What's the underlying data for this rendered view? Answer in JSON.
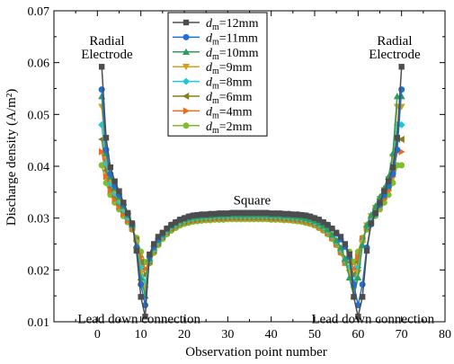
{
  "chart_data": {
    "type": "line",
    "xlabel": "Observation point number",
    "ylabel": "Discharge density (A/m²)",
    "xlim": [
      -10,
      80
    ],
    "ylim": [
      0.01,
      0.07
    ],
    "xticks": [
      0,
      10,
      20,
      30,
      40,
      50,
      60,
      70,
      80
    ],
    "yticks": [
      0.01,
      0.02,
      0.03,
      0.04,
      0.05,
      0.06,
      0.07
    ],
    "grid": false,
    "legend_position": "top-center",
    "x": [
      1,
      2,
      3,
      4,
      5,
      6,
      7,
      8,
      9,
      10,
      11,
      12,
      13,
      14,
      15,
      16,
      17,
      18,
      19,
      20,
      21,
      22,
      23,
      24,
      25,
      26,
      27,
      28,
      29,
      30,
      31,
      32,
      33,
      34,
      35,
      36,
      37,
      38,
      39,
      40,
      41,
      42,
      43,
      44,
      45,
      46,
      47,
      48,
      49,
      50,
      51,
      52,
      53,
      54,
      55,
      56,
      57,
      58,
      59,
      60,
      61,
      62,
      63,
      64,
      65,
      66,
      67,
      68,
      69,
      70
    ],
    "series": [
      {
        "legend_label": "12mm",
        "marker": "square",
        "color": "#4d4d4d",
        "values": [
          0.0592,
          0.0455,
          0.0398,
          0.0371,
          0.0352,
          0.033,
          0.031,
          0.029,
          0.0237,
          0.0148,
          0.011,
          0.023,
          0.025,
          0.0264,
          0.0272,
          0.028,
          0.0287,
          0.0292,
          0.0297,
          0.03,
          0.0303,
          0.0305,
          0.0306,
          0.0307,
          0.0307,
          0.0308,
          0.0308,
          0.0309,
          0.0309,
          0.0309,
          0.031,
          0.031,
          0.031,
          0.031,
          0.031,
          0.031,
          0.031,
          0.031,
          0.031,
          0.0309,
          0.0309,
          0.0309,
          0.0308,
          0.0308,
          0.0307,
          0.0307,
          0.0306,
          0.0305,
          0.0303,
          0.03,
          0.0297,
          0.0292,
          0.0287,
          0.028,
          0.0272,
          0.0264,
          0.025,
          0.023,
          0.0148,
          0.011,
          0.0148,
          0.0237,
          0.029,
          0.031,
          0.033,
          0.0352,
          0.0371,
          0.0398,
          0.0455,
          0.0592
        ]
      },
      {
        "legend_label": "11mm",
        "marker": "circle",
        "color": "#1f6fd6",
        "values": [
          0.0548,
          0.0432,
          0.0385,
          0.0362,
          0.0345,
          0.0326,
          0.0308,
          0.0288,
          0.0243,
          0.0172,
          0.0132,
          0.0225,
          0.0245,
          0.0259,
          0.027,
          0.028,
          0.0287,
          0.0292,
          0.0297,
          0.03,
          0.0303,
          0.0305,
          0.0306,
          0.0307,
          0.0307,
          0.0308,
          0.0308,
          0.0309,
          0.0309,
          0.0309,
          0.031,
          0.031,
          0.031,
          0.031,
          0.031,
          0.031,
          0.031,
          0.031,
          0.031,
          0.0309,
          0.0309,
          0.0309,
          0.0308,
          0.0308,
          0.0307,
          0.0307,
          0.0306,
          0.0305,
          0.0303,
          0.03,
          0.0297,
          0.0292,
          0.0287,
          0.028,
          0.027,
          0.0259,
          0.0245,
          0.0225,
          0.0172,
          0.0132,
          0.0172,
          0.0243,
          0.0288,
          0.0308,
          0.0326,
          0.0345,
          0.0362,
          0.0385,
          0.0432,
          0.0548
        ]
      },
      {
        "legend_label": "10mm",
        "marker": "triangle-up",
        "color": "#2e9e5e",
        "values": [
          0.0535,
          0.0425,
          0.038,
          0.0358,
          0.0341,
          0.0323,
          0.0306,
          0.0287,
          0.0248,
          0.0185,
          0.015,
          0.0222,
          0.0243,
          0.0257,
          0.0268,
          0.0278,
          0.0285,
          0.029,
          0.0295,
          0.0298,
          0.03,
          0.0302,
          0.0303,
          0.0304,
          0.0305,
          0.0305,
          0.0306,
          0.0306,
          0.0306,
          0.0307,
          0.0307,
          0.0307,
          0.0307,
          0.0307,
          0.0307,
          0.0307,
          0.0307,
          0.0307,
          0.0307,
          0.0306,
          0.0306,
          0.0306,
          0.0305,
          0.0305,
          0.0304,
          0.0303,
          0.0302,
          0.03,
          0.0298,
          0.0295,
          0.029,
          0.0285,
          0.0278,
          0.0268,
          0.0257,
          0.0243,
          0.0222,
          0.0185,
          0.015,
          0.0185,
          0.0248,
          0.0287,
          0.0306,
          0.0323,
          0.0341,
          0.0358,
          0.038,
          0.0425,
          0.0535,
          0.0535
        ]
      },
      {
        "legend_label": "9mm",
        "marker": "triangle-down",
        "color": "#d4a017",
        "values": [
          0.0515,
          0.0418,
          0.0375,
          0.0354,
          0.0337,
          0.032,
          0.0304,
          0.0286,
          0.0252,
          0.0195,
          0.0162,
          0.022,
          0.0241,
          0.0256,
          0.0267,
          0.0277,
          0.0284,
          0.0289,
          0.0294,
          0.0297,
          0.0299,
          0.0301,
          0.0302,
          0.0303,
          0.0304,
          0.0304,
          0.0305,
          0.0305,
          0.0305,
          0.0306,
          0.0306,
          0.0306,
          0.0306,
          0.0306,
          0.0306,
          0.0306,
          0.0306,
          0.0306,
          0.0306,
          0.0305,
          0.0305,
          0.0305,
          0.0304,
          0.0304,
          0.0303,
          0.0302,
          0.0301,
          0.0299,
          0.0297,
          0.0294,
          0.0289,
          0.0284,
          0.0277,
          0.0267,
          0.0256,
          0.0241,
          0.022,
          0.0195,
          0.0162,
          0.0195,
          0.0252,
          0.0286,
          0.0304,
          0.032,
          0.0337,
          0.0354,
          0.0375,
          0.0418,
          0.0515,
          0.0515
        ]
      },
      {
        "legend_label": "8mm",
        "marker": "diamond",
        "color": "#1fc6d6",
        "values": [
          0.048,
          0.0405,
          0.0367,
          0.0348,
          0.0332,
          0.0316,
          0.0301,
          0.0284,
          0.0255,
          0.0205,
          0.0175,
          0.0218,
          0.0239,
          0.0254,
          0.0265,
          0.0275,
          0.0282,
          0.0287,
          0.0292,
          0.0295,
          0.0297,
          0.0299,
          0.03,
          0.0301,
          0.0302,
          0.0302,
          0.0303,
          0.0303,
          0.0303,
          0.0304,
          0.0304,
          0.0304,
          0.0304,
          0.0304,
          0.0304,
          0.0304,
          0.0304,
          0.0304,
          0.0304,
          0.0303,
          0.0303,
          0.0303,
          0.0302,
          0.0302,
          0.0301,
          0.03,
          0.0299,
          0.0297,
          0.0295,
          0.0292,
          0.0287,
          0.0282,
          0.0275,
          0.0265,
          0.0254,
          0.0239,
          0.0218,
          0.0205,
          0.0175,
          0.0205,
          0.0255,
          0.0284,
          0.0301,
          0.0316,
          0.0332,
          0.0348,
          0.0367,
          0.0405,
          0.048,
          0.048
        ]
      },
      {
        "legend_label": "6mm",
        "marker": "triangle-left",
        "color": "#8a7d1a",
        "values": [
          0.0452,
          0.0392,
          0.036,
          0.0342,
          0.0327,
          0.0312,
          0.0298,
          0.0282,
          0.0258,
          0.0215,
          0.019,
          0.0216,
          0.0237,
          0.0252,
          0.0264,
          0.0273,
          0.028,
          0.0285,
          0.029,
          0.0293,
          0.0295,
          0.0297,
          0.0298,
          0.0299,
          0.03,
          0.03,
          0.0301,
          0.0301,
          0.0301,
          0.0302,
          0.0302,
          0.0302,
          0.0302,
          0.0302,
          0.0302,
          0.0302,
          0.0302,
          0.0302,
          0.0302,
          0.0301,
          0.0301,
          0.0301,
          0.03,
          0.03,
          0.0299,
          0.0298,
          0.0297,
          0.0295,
          0.0293,
          0.029,
          0.0285,
          0.028,
          0.0273,
          0.0264,
          0.0252,
          0.0237,
          0.0216,
          0.0215,
          0.019,
          0.0215,
          0.0258,
          0.0282,
          0.0298,
          0.0312,
          0.0327,
          0.0342,
          0.036,
          0.0392,
          0.0452,
          0.0452
        ]
      },
      {
        "legend_label": "4mm",
        "marker": "triangle-right",
        "color": "#f06a1c",
        "values": [
          0.0428,
          0.038,
          0.0353,
          0.0336,
          0.0322,
          0.0308,
          0.0295,
          0.028,
          0.026,
          0.0225,
          0.0202,
          0.0214,
          0.0235,
          0.025,
          0.0262,
          0.0271,
          0.0278,
          0.0283,
          0.0288,
          0.0291,
          0.0293,
          0.0295,
          0.0296,
          0.0297,
          0.0298,
          0.0298,
          0.0299,
          0.0299,
          0.0299,
          0.03,
          0.03,
          0.03,
          0.03,
          0.03,
          0.03,
          0.03,
          0.03,
          0.03,
          0.03,
          0.0299,
          0.0299,
          0.0299,
          0.0298,
          0.0298,
          0.0297,
          0.0296,
          0.0295,
          0.0293,
          0.0291,
          0.0288,
          0.0283,
          0.0278,
          0.0271,
          0.0262,
          0.025,
          0.0235,
          0.0214,
          0.0225,
          0.0202,
          0.0225,
          0.026,
          0.028,
          0.0295,
          0.0308,
          0.0322,
          0.0336,
          0.0353,
          0.038,
          0.0428,
          0.0428
        ]
      },
      {
        "legend_label": "2mm",
        "marker": "circle",
        "color": "#7cbf2a",
        "values": [
          0.0402,
          0.0368,
          0.0345,
          0.033,
          0.0317,
          0.0304,
          0.0292,
          0.0278,
          0.0262,
          0.0235,
          0.0215,
          0.0213,
          0.0233,
          0.0248,
          0.026,
          0.0269,
          0.0276,
          0.0281,
          0.0286,
          0.0289,
          0.0291,
          0.0293,
          0.0294,
          0.0295,
          0.0296,
          0.0296,
          0.0297,
          0.0297,
          0.0297,
          0.0298,
          0.0298,
          0.0298,
          0.0298,
          0.0298,
          0.0298,
          0.0298,
          0.0298,
          0.0298,
          0.0298,
          0.0297,
          0.0297,
          0.0297,
          0.0296,
          0.0296,
          0.0295,
          0.0294,
          0.0293,
          0.0291,
          0.0289,
          0.0286,
          0.0281,
          0.0276,
          0.0269,
          0.026,
          0.0248,
          0.0233,
          0.0213,
          0.0235,
          0.0215,
          0.0235,
          0.0262,
          0.0278,
          0.0292,
          0.0304,
          0.0317,
          0.033,
          0.0345,
          0.0368,
          0.0402,
          0.0402
        ]
      }
    ],
    "legend_prefix": "d",
    "legend_prefix_sub": "m",
    "legend_prefix_eq": "=",
    "annotations": [
      {
        "id": "radial-left-1",
        "text": "Radial",
        "x": 2.2,
        "y": 0.0634
      },
      {
        "id": "radial-left-2",
        "text": "Electrode",
        "x": 2.2,
        "y": 0.0608
      },
      {
        "id": "radial-right-1",
        "text": "Radial",
        "x": 68.4,
        "y": 0.0634
      },
      {
        "id": "radial-right-2",
        "text": "Electrode",
        "x": 68.4,
        "y": 0.0608
      },
      {
        "id": "square",
        "text": "Square",
        "x": 35.6,
        "y": 0.0326
      },
      {
        "id": "lead-left",
        "text": "Lead down connection",
        "x": 9.6,
        "y": 0.0097
      },
      {
        "id": "lead-right",
        "text": "Lead down connection",
        "x": 63.4,
        "y": 0.0097
      }
    ]
  }
}
